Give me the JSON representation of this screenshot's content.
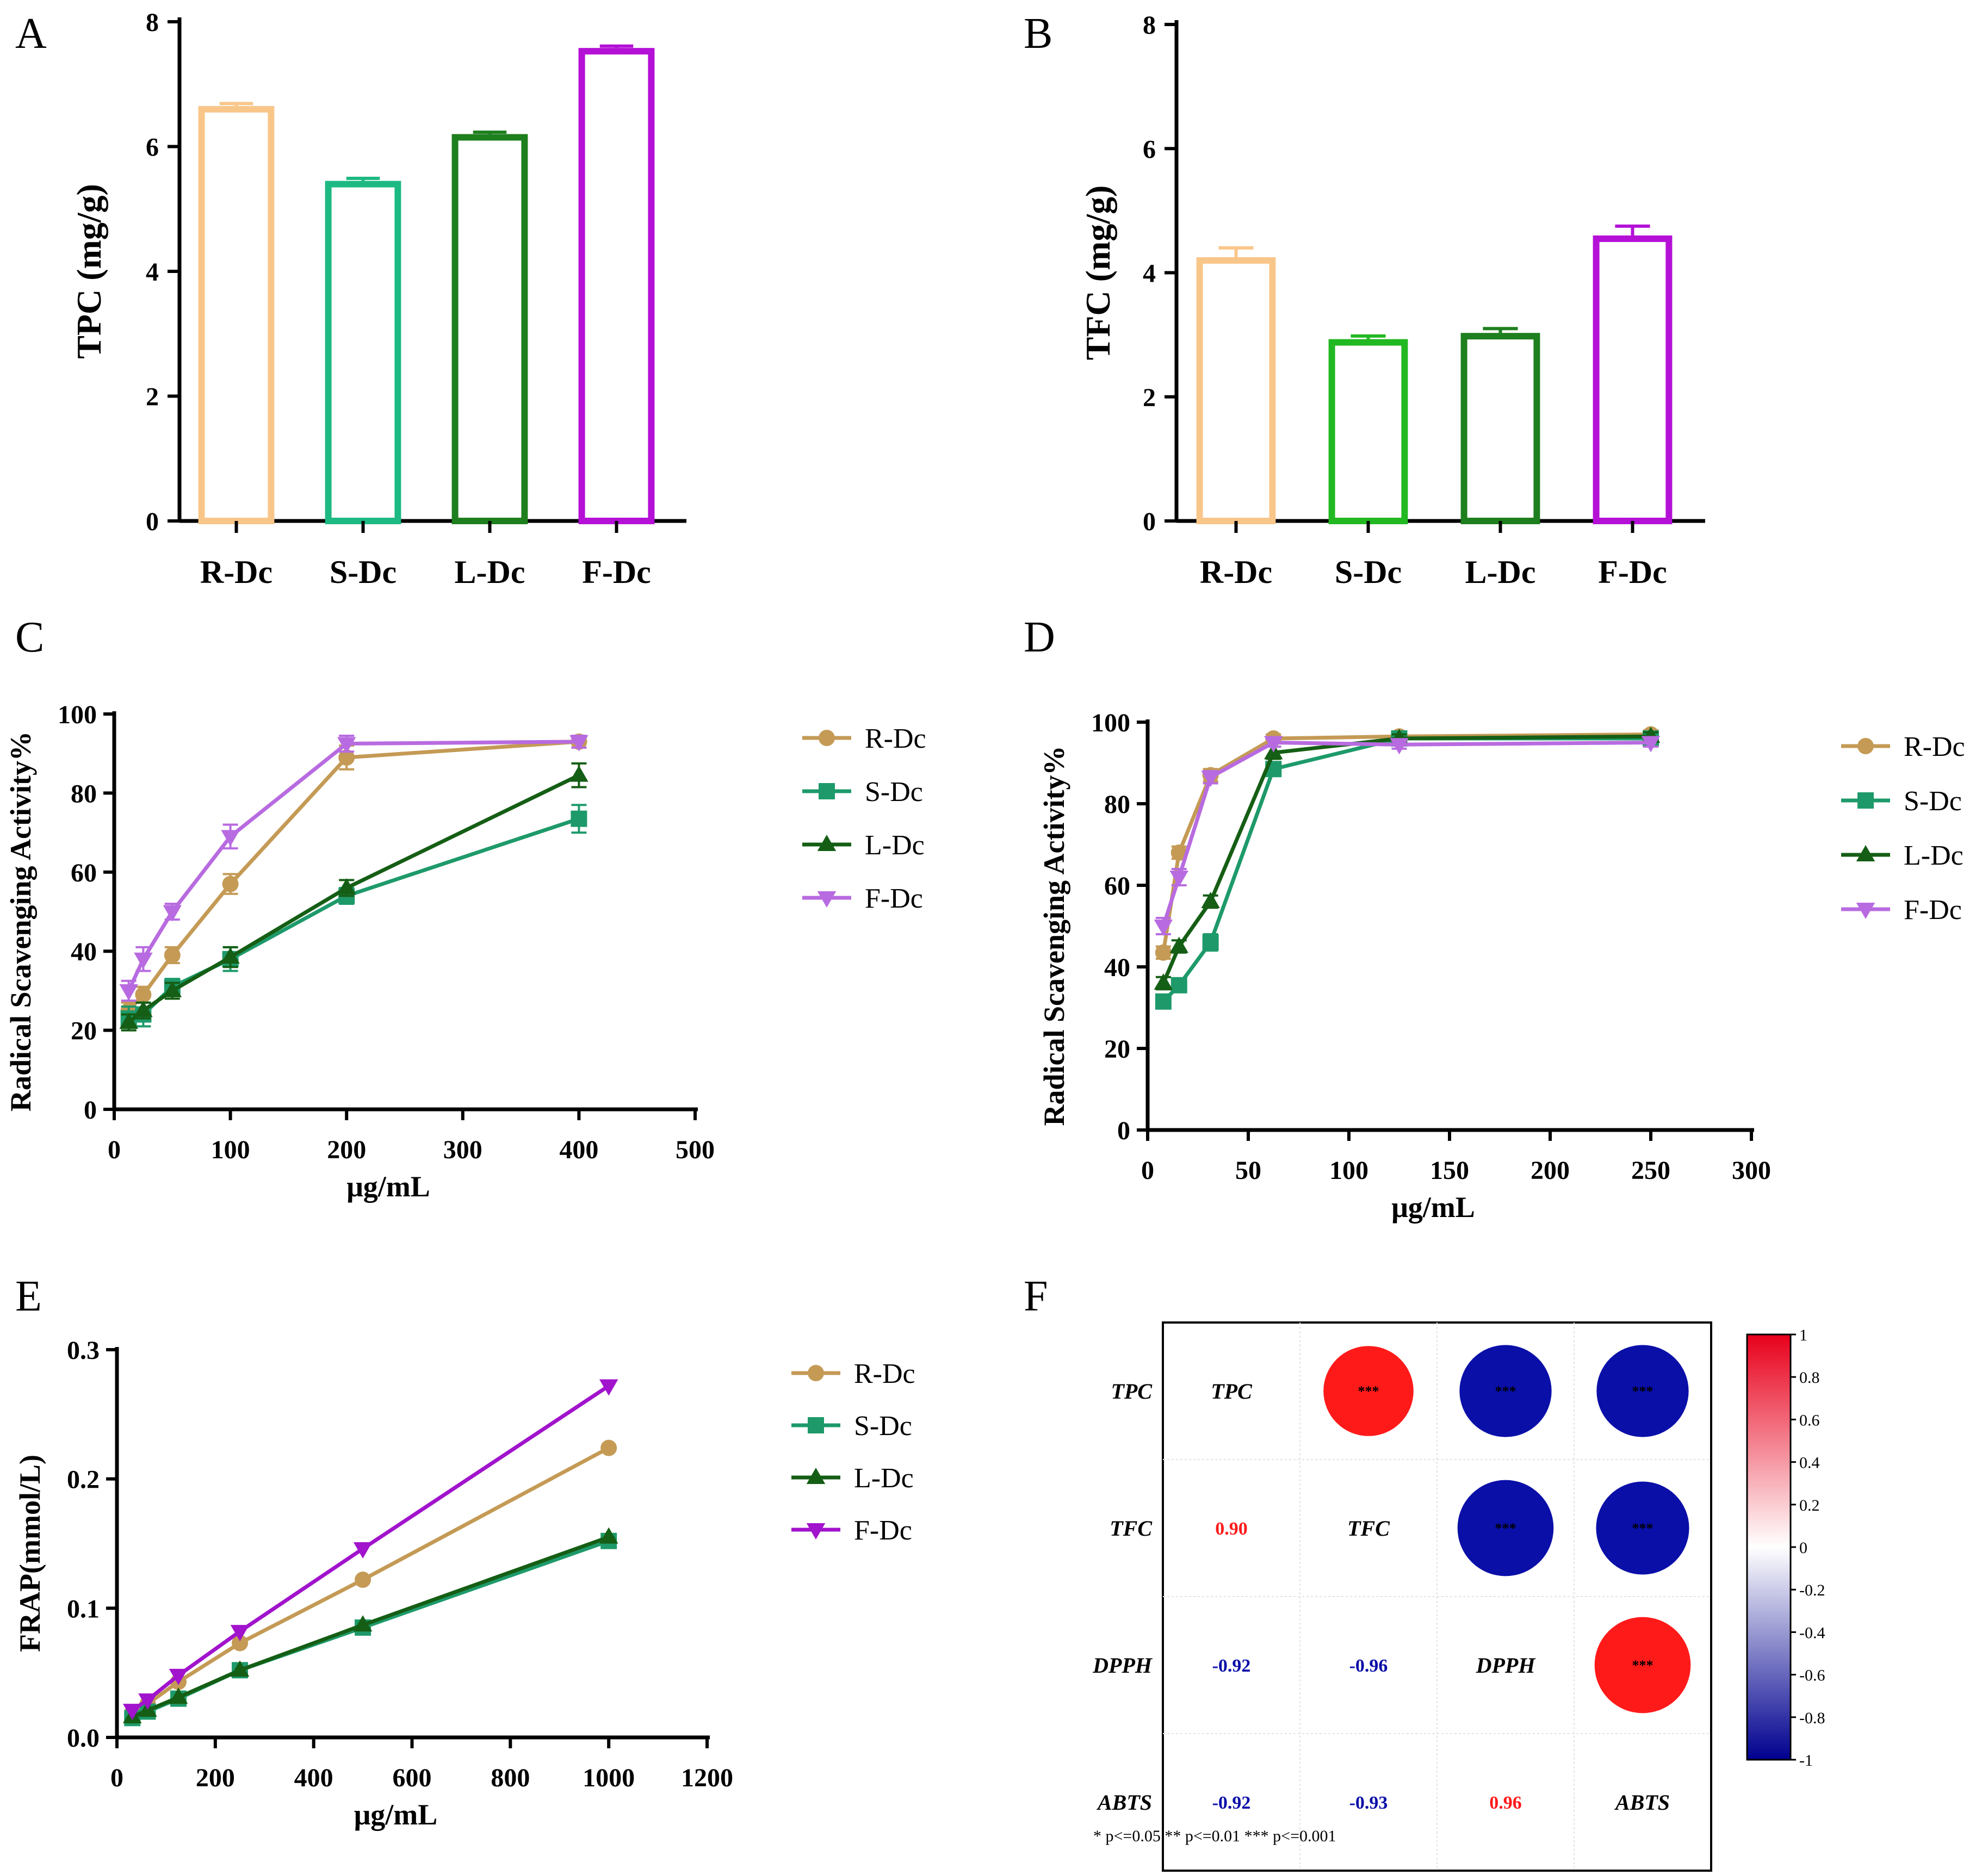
{
  "panels": {
    "A": "A",
    "B": "B",
    "C": "C",
    "D": "D",
    "E": "E",
    "F": "F"
  },
  "colors": {
    "R-Dc": "#F9C68A",
    "S-Dc_A": "#1DB982",
    "S-Dc_B": "#22B822",
    "L-Dc": "#1E7F1E",
    "F-Dc": "#B410D6",
    "line_R": "#C49A55",
    "line_S": "#1E9A6A",
    "line_L": "#155E15",
    "line_F": "#B86BE0",
    "line_F_E": "#A113CC",
    "corr_pos": "#FF1A1A",
    "corr_neg": "#0A0FA8"
  },
  "chart_data": [
    {
      "id": "A",
      "type": "bar",
      "categories": [
        "R-Dc",
        "S-Dc",
        "L-Dc",
        "F-Dc"
      ],
      "values": [
        6.65,
        5.45,
        6.2,
        7.58
      ],
      "errors": [
        0.04,
        0.04,
        0.03,
        0.03
      ],
      "ylabel": "TPC (mg/g)",
      "ylim": [
        0,
        8
      ],
      "yticks": [
        "0",
        "2",
        "4",
        "6",
        "8"
      ]
    },
    {
      "id": "B",
      "type": "bar",
      "categories": [
        "R-Dc",
        "S-Dc",
        "L-Dc",
        "F-Dc"
      ],
      "values": [
        4.25,
        2.93,
        3.03,
        4.6
      ],
      "errors": [
        0.15,
        0.05,
        0.07,
        0.15
      ],
      "ylabel": "TFC (mg/g)",
      "ylim": [
        0,
        8
      ],
      "yticks": [
        "0",
        "2",
        "4",
        "6",
        "8"
      ]
    },
    {
      "id": "C",
      "type": "line",
      "x": [
        12.5,
        25,
        50,
        100,
        200,
        400
      ],
      "series": [
        {
          "name": "R-Dc",
          "values": [
            25,
            29,
            39,
            57,
            89,
            93
          ],
          "errors": [
            2,
            2,
            2,
            2.5,
            3,
            1.5
          ]
        },
        {
          "name": "S-Dc",
          "values": [
            23,
            24,
            31,
            38,
            54,
            73.5
          ],
          "errors": [
            3,
            3,
            2,
            3,
            2,
            3.5
          ]
        },
        {
          "name": "L-Dc",
          "values": [
            22,
            25,
            30,
            38.5,
            56,
            84.5
          ],
          "errors": [
            2,
            2,
            2,
            2.5,
            2,
            3
          ]
        },
        {
          "name": "F-Dc",
          "values": [
            30,
            38,
            50,
            69,
            92.5,
            93
          ],
          "errors": [
            2.5,
            3,
            2,
            3,
            2,
            1.5
          ]
        }
      ],
      "xlabel": "μg/mL",
      "ylabel": "Radical Scavenging Activity%",
      "xlim": [
        0,
        500
      ],
      "ylim": [
        0,
        100
      ],
      "xticks": [
        "0",
        "100",
        "200",
        "300",
        "400",
        "500"
      ],
      "yticks": [
        "0",
        "20",
        "40",
        "60",
        "80",
        "100"
      ]
    },
    {
      "id": "D",
      "type": "line",
      "x": [
        7.8,
        15.6,
        31.25,
        62.5,
        125,
        250
      ],
      "series": [
        {
          "name": "R-Dc",
          "values": [
            43.5,
            68,
            87,
            96,
            96.5,
            97
          ],
          "errors": [
            1.5,
            1.5,
            1.5,
            1,
            1,
            1
          ]
        },
        {
          "name": "S-Dc",
          "values": [
            31.5,
            35.5,
            46,
            88.5,
            96,
            96
          ],
          "errors": [
            1.5,
            1.5,
            2,
            1.5,
            1,
            1
          ]
        },
        {
          "name": "L-Dc",
          "values": [
            36,
            45,
            56,
            92.5,
            96,
            96.5
          ],
          "errors": [
            1.5,
            1.5,
            1.5,
            1.5,
            1,
            1
          ]
        },
        {
          "name": "F-Dc",
          "values": [
            50,
            62,
            86.5,
            95,
            94.5,
            95
          ],
          "errors": [
            2,
            2,
            1.5,
            1,
            1,
            1
          ]
        }
      ],
      "xlabel": "μg/mL",
      "ylabel": "Radical Scavenging Activity%",
      "xlim": [
        0,
        300
      ],
      "ylim": [
        0,
        100
      ],
      "xticks": [
        "0",
        "50",
        "100",
        "150",
        "200",
        "250",
        "300"
      ],
      "yticks": [
        "0",
        "20",
        "40",
        "60",
        "80",
        "100"
      ]
    },
    {
      "id": "E",
      "type": "line",
      "x": [
        31.25,
        62.5,
        125,
        250,
        500,
        1000
      ],
      "series": [
        {
          "name": "R-Dc",
          "values": [
            0.019,
            0.026,
            0.043,
            0.073,
            0.122,
            0.224
          ]
        },
        {
          "name": "S-Dc",
          "values": [
            0.015,
            0.02,
            0.03,
            0.052,
            0.085,
            0.152
          ]
        },
        {
          "name": "L-Dc",
          "values": [
            0.016,
            0.021,
            0.031,
            0.052,
            0.087,
            0.155
          ]
        },
        {
          "name": "F-Dc",
          "values": [
            0.021,
            0.029,
            0.048,
            0.082,
            0.146,
            0.272
          ]
        }
      ],
      "xlabel": "μg/mL",
      "ylabel": "FRAP(mmol/L)",
      "xlim": [
        0,
        1200
      ],
      "ylim": [
        0,
        0.3
      ],
      "xticks": [
        "0",
        "200",
        "400",
        "600",
        "800",
        "1000",
        "1200"
      ],
      "yticks": [
        "0.0",
        "0.1",
        "0.2",
        "0.3"
      ]
    },
    {
      "id": "F",
      "type": "heatmap",
      "variables": [
        "TPC",
        "TFC",
        "DPPH",
        "ABTS"
      ],
      "lower_values": [
        [
          "",
          "",
          "",
          ""
        ],
        [
          "0.90",
          "",
          "",
          ""
        ],
        [
          "-0.92",
          "-0.96",
          "",
          ""
        ],
        [
          "-0.92",
          "-0.93",
          "0.96",
          ""
        ]
      ],
      "matrix": [
        [
          1,
          0.9,
          -0.92,
          -0.92
        ],
        [
          0.9,
          1,
          -0.96,
          -0.93
        ],
        [
          -0.92,
          -0.96,
          1,
          0.96
        ],
        [
          -0.92,
          -0.93,
          0.96,
          1
        ]
      ],
      "stars": "***",
      "colorbar_ticks": [
        "1",
        "0.8",
        "0.6",
        "0.4",
        "0.2",
        "0",
        "-0.2",
        "-0.4",
        "-0.6",
        "-0.8",
        "-1"
      ],
      "footnote": "* p<=0.05  ** p<=0.01  *** p<=0.001"
    }
  ]
}
